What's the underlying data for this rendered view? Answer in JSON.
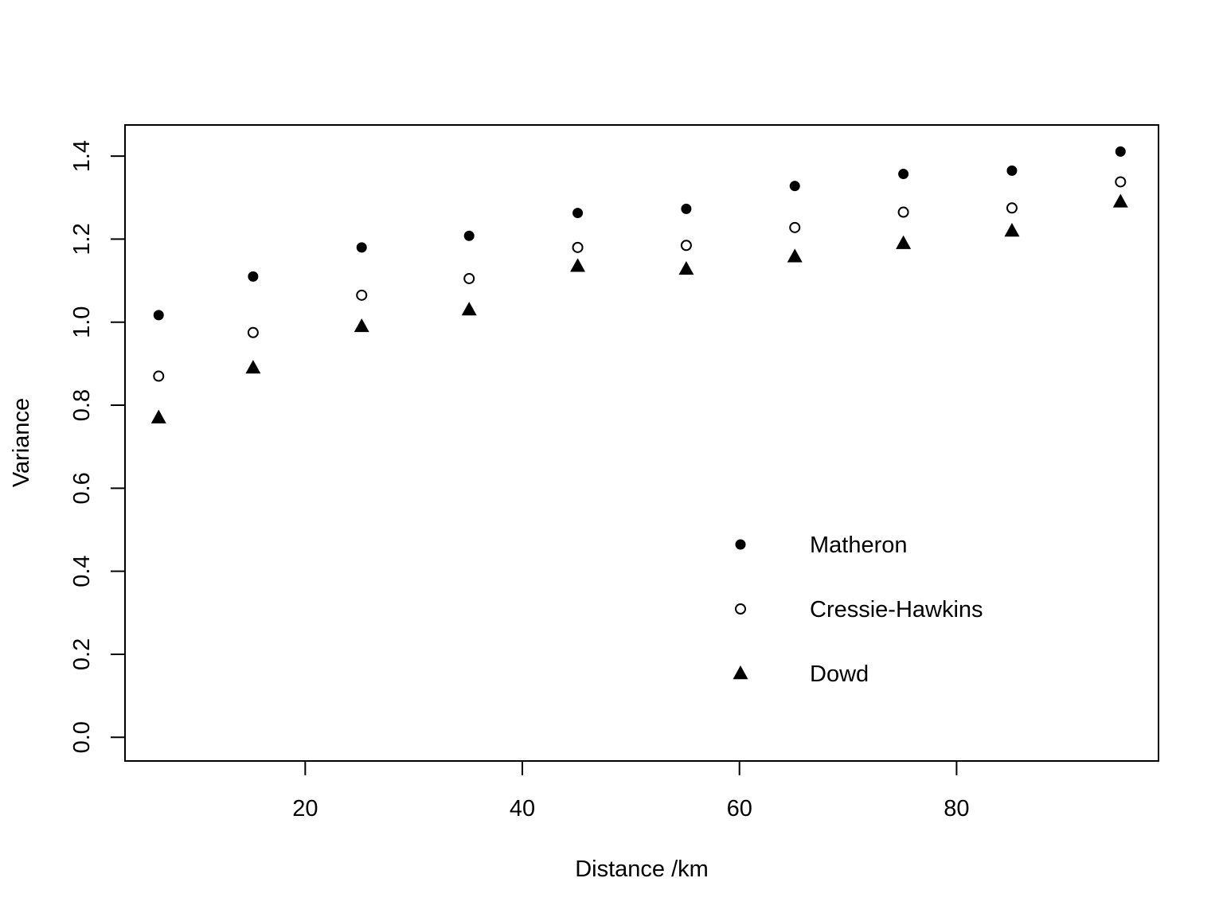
{
  "chart_data": {
    "type": "scatter",
    "title": "",
    "xlabel": "Distance /km",
    "ylabel": "Variance",
    "xlim": [
      3.4,
      98.6
    ],
    "ylim": [
      -0.057,
      1.475
    ],
    "xticks": [
      20,
      40,
      60,
      80
    ],
    "yticks": [
      0.0,
      0.2,
      0.4,
      0.6,
      0.8,
      1.0,
      1.2,
      1.4
    ],
    "grid": false,
    "legend_position": "bottom-right",
    "x": [
      6.5,
      15.2,
      25.2,
      35.1,
      45.1,
      55.1,
      65.1,
      75.1,
      85.1,
      95.1
    ],
    "series": [
      {
        "name": "Matheron",
        "marker": "filled-circle",
        "values": [
          1.017,
          1.11,
          1.18,
          1.208,
          1.263,
          1.273,
          1.328,
          1.357,
          1.365,
          1.411
        ]
      },
      {
        "name": "Cressie-Hawkins",
        "marker": "open-circle",
        "values": [
          0.87,
          0.975,
          1.065,
          1.105,
          1.18,
          1.185,
          1.228,
          1.265,
          1.275,
          1.338
        ]
      },
      {
        "name": "Dowd",
        "marker": "filled-triangle",
        "values": [
          0.77,
          0.89,
          0.99,
          1.03,
          1.135,
          1.128,
          1.158,
          1.19,
          1.22,
          1.29
        ]
      }
    ],
    "colors": {
      "marker": "#000000",
      "background": "#ffffff",
      "frame": "#000000"
    }
  }
}
